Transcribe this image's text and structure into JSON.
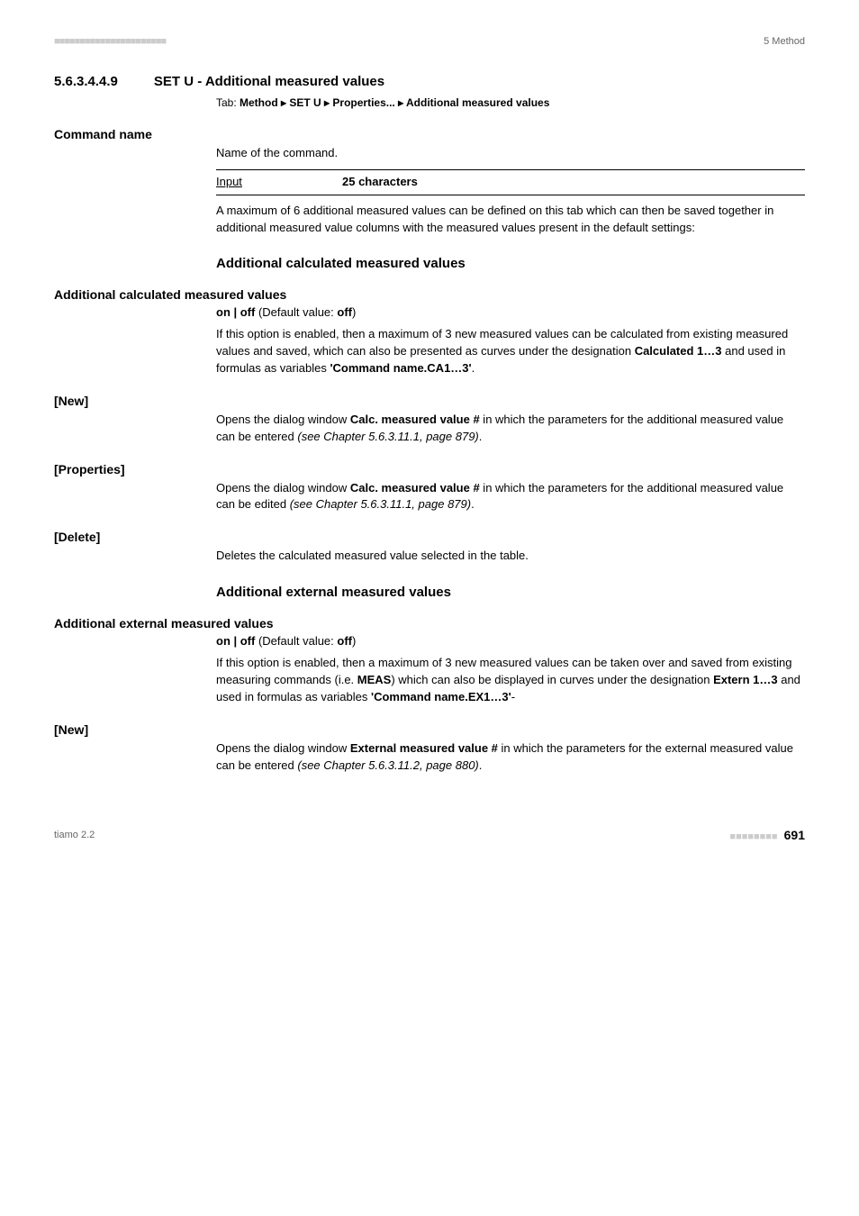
{
  "header": {
    "dots": "■■■■■■■■■■■■■■■■■■■■■■",
    "right": "5 Method"
  },
  "section": {
    "number": "5.6.3.4.4.9",
    "title": "SET U - Additional measured values",
    "tab_prefix": "Tab: ",
    "tab_path": "Method ▸ SET U ▸ Properties... ▸ Additional measured values"
  },
  "command_name": {
    "label": "Command name",
    "desc": "Name of the command.",
    "input_label": "Input",
    "input_value": "25 characters",
    "para": "A maximum of 6 additional measured values can be defined on this tab which can then be saved together in additional measured value columns with the measured values present in the default settings:"
  },
  "calc_heading": "Additional calculated measured values",
  "calc_values": {
    "label": "Additional calculated measured values",
    "onoff_prefix": "on | off",
    "onoff_mid": " (Default value: ",
    "onoff_val": "off",
    "onoff_suffix": ")",
    "para_1": "If this option is enabled, then a maximum of 3 new measured values can be calculated from existing measured values and saved, which can also be presented as curves under the designation ",
    "para_1b": "Calculated 1…3",
    "para_1c": " and used in formulas as variables ",
    "para_1d": "'Command name.CA1…3'",
    "para_1e": "."
  },
  "new1": {
    "label": "[New]",
    "p1": "Opens the dialog window ",
    "p1b": "Calc. measured value #",
    "p1c": " in which the parameters for the additional measured value can be entered ",
    "p1d": "(see Chapter 5.6.3.11.1, page 879)",
    "p1e": "."
  },
  "properties": {
    "label": "[Properties]",
    "p1": "Opens the dialog window ",
    "p1b": "Calc. measured value #",
    "p1c": " in which the parameters for the additional measured value can be edited ",
    "p1d": "(see Chapter 5.6.3.11.1, page 879)",
    "p1e": "."
  },
  "delete": {
    "label": "[Delete]",
    "p1": "Deletes the calculated measured value selected in the table."
  },
  "ext_heading": "Additional external measured values",
  "ext_values": {
    "label": "Additional external measured values",
    "onoff_prefix": "on | off",
    "onoff_mid": " (Default value: ",
    "onoff_val": "off",
    "onoff_suffix": ")",
    "p1": "If this option is enabled, then a maximum of 3 new measured values can be taken over and saved from existing measuring commands (i.e. ",
    "p1b": "MEAS",
    "p1c": ") which can also be displayed in curves under the designation ",
    "p1d": "Extern 1…3",
    "p1e": " and used in formulas as variables ",
    "p1f": "'Command name.EX1…3'",
    "p1g": "-"
  },
  "new2": {
    "label": "[New]",
    "p1": "Opens the dialog window ",
    "p1b": "External measured value #",
    "p1c": " in which the parameters for the external measured value can be entered ",
    "p1d": "(see Chapter 5.6.3.11.2, page 880)",
    "p1e": "."
  },
  "footer": {
    "left": "tiamo 2.2",
    "dots": "■■■■■■■■",
    "page": "691"
  }
}
